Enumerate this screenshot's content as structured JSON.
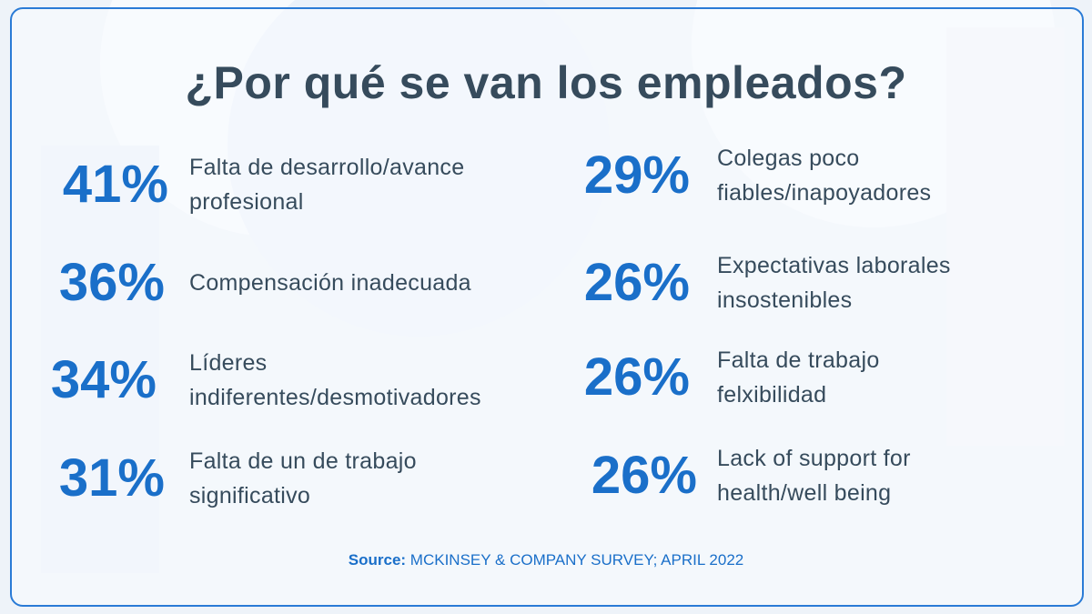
{
  "title": "¿Por qué se van los empleados?",
  "accent_color": "#1a6fc9",
  "left_column": [
    {
      "percent": "41%",
      "reason": "Falta de desarrollo/avance profesional"
    },
    {
      "percent": "36%",
      "reason": "Compensación inadecuada"
    },
    {
      "percent": "34%",
      "reason": "Líderes indiferentes/desmotivadores"
    },
    {
      "percent": "31%",
      "reason": "Falta de un de trabajo significativo"
    }
  ],
  "right_column": [
    {
      "percent": "29%",
      "reason": "Colegas poco fiables/inapoyadores"
    },
    {
      "percent": "26%",
      "reason": "Expectativas laborales insostenibles"
    },
    {
      "percent": "26%",
      "reason": "Falta de trabajo felxibilidad"
    },
    {
      "percent": "26%",
      "reason": "Lack of support for health/well being"
    }
  ],
  "source": {
    "label": "Source:",
    "text": "MCKINSEY & COMPANY SURVEY; APRIL 2022"
  }
}
